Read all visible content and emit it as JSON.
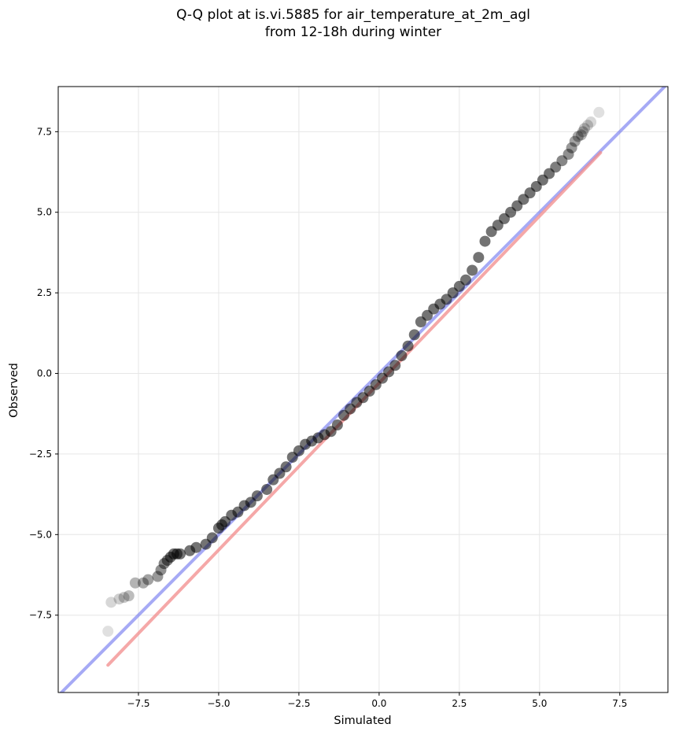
{
  "chart_data": {
    "type": "scatter",
    "title_line1": "Q-Q plot at is.vi.5885 for air_temperature_at_2m_agl",
    "title_line2": "from 12-18h during winter",
    "xlabel": "Simulated",
    "ylabel": "Observed",
    "xlim": [
      -10.0,
      9.0
    ],
    "ylim": [
      -9.9,
      8.9
    ],
    "xticks": [
      -7.5,
      -5.0,
      -2.5,
      0.0,
      2.5,
      5.0,
      7.5
    ],
    "xtick_labels": [
      "−7.5",
      "−5.0",
      "−2.5",
      "0.0",
      "2.5",
      "5.0",
      "7.5"
    ],
    "yticks": [
      7.5,
      5.0,
      2.5,
      0.0,
      -2.5,
      -5.0,
      -7.5
    ],
    "ytick_labels": [
      "7.5",
      "5.0",
      "2.5",
      "0.0",
      "−2.5",
      "−5.0",
      "−7.5"
    ],
    "grid": true,
    "colors": {
      "points": "#000000",
      "identity_line": "#6b72ee",
      "fit_line": "#f28b8b",
      "grid": "#e6e6e6"
    },
    "identity_line": {
      "x": [
        -10.0,
        9.0
      ],
      "y": [
        -10.0,
        9.0
      ]
    },
    "fit_line": {
      "x": [
        -8.45,
        6.9
      ],
      "y": [
        -9.05,
        6.85
      ]
    },
    "points": {
      "x": [
        -8.45,
        -8.35,
        -8.1,
        -7.95,
        -7.8,
        -7.6,
        -7.35,
        -7.2,
        -6.9,
        -6.8,
        -6.7,
        -6.6,
        -6.5,
        -6.4,
        -6.3,
        -6.2,
        -5.9,
        -5.7,
        -5.4,
        -5.2,
        -5.0,
        -4.9,
        -4.8,
        -4.6,
        -4.4,
        -4.2,
        -4.0,
        -3.8,
        -3.5,
        -3.3,
        -3.1,
        -2.9,
        -2.7,
        -2.5,
        -2.3,
        -2.1,
        -1.9,
        -1.7,
        -1.5,
        -1.3,
        -1.1,
        -0.9,
        -0.7,
        -0.5,
        -0.3,
        -0.1,
        0.1,
        0.3,
        0.5,
        0.7,
        0.9,
        1.1,
        1.3,
        1.5,
        1.7,
        1.9,
        2.1,
        2.3,
        2.5,
        2.7,
        2.9,
        3.1,
        3.3,
        3.5,
        3.7,
        3.9,
        4.1,
        4.3,
        4.5,
        4.7,
        4.9,
        5.1,
        5.3,
        5.5,
        5.7,
        5.9,
        6.0,
        6.1,
        6.2,
        6.3,
        6.35,
        6.4,
        6.5,
        6.6,
        6.85
      ],
      "y": [
        -8.0,
        -7.1,
        -7.0,
        -6.95,
        -6.9,
        -6.5,
        -6.5,
        -6.4,
        -6.3,
        -6.1,
        -5.9,
        -5.8,
        -5.7,
        -5.6,
        -5.6,
        -5.6,
        -5.5,
        -5.4,
        -5.3,
        -5.1,
        -4.8,
        -4.7,
        -4.6,
        -4.4,
        -4.3,
        -4.1,
        -4.0,
        -3.8,
        -3.6,
        -3.3,
        -3.1,
        -2.9,
        -2.6,
        -2.4,
        -2.2,
        -2.1,
        -2.0,
        -1.9,
        -1.8,
        -1.6,
        -1.3,
        -1.1,
        -0.9,
        -0.75,
        -0.55,
        -0.35,
        -0.15,
        0.05,
        0.25,
        0.55,
        0.85,
        1.2,
        1.6,
        1.8,
        2.0,
        2.15,
        2.3,
        2.5,
        2.7,
        2.9,
        3.2,
        3.6,
        4.1,
        4.4,
        4.6,
        4.8,
        5.0,
        5.2,
        5.4,
        5.6,
        5.8,
        6.0,
        6.2,
        6.4,
        6.6,
        6.8,
        7.0,
        7.2,
        7.35,
        7.4,
        7.5,
        7.6,
        7.7,
        7.8,
        8.1
      ]
    }
  }
}
